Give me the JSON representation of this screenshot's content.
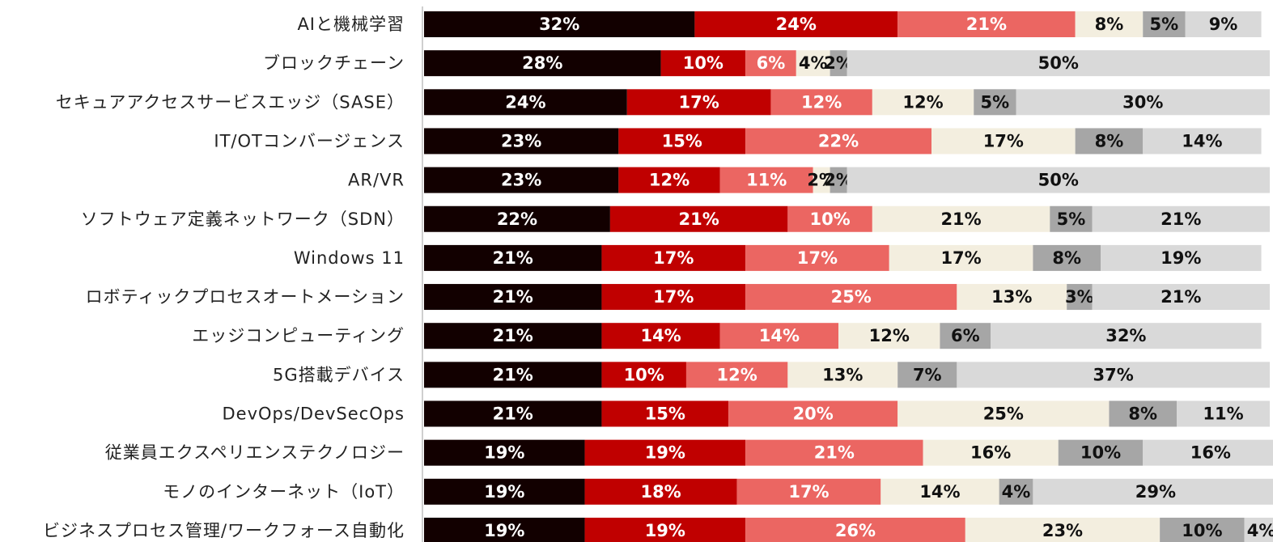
{
  "chart_data": {
    "type": "stacked_bar_horizontal",
    "categories": [
      "AIと機械学習",
      "ブロックチェーン",
      "セキュアアクセスサービスエッジ（SASE）",
      "IT/OTコンバージェンス",
      "AR/VR",
      "ソフトウェア定義ネットワーク（SDN）",
      "Windows 11",
      "ロボティックプロセスオートメーション",
      "エッジコンピューティング",
      "5G搭載デバイス",
      "DevOps/DevSecOps",
      "従業員エクスペリエンステクノロジー",
      "モノのインターネット（IoT）",
      "ビジネスプロセス管理/ワークフォース自動化"
    ],
    "xlim": [
      0,
      100
    ],
    "series": [
      {
        "color": "#120000",
        "values": [
          32,
          28,
          24,
          23,
          23,
          22,
          21,
          21,
          21,
          21,
          21,
          19,
          19,
          19
        ],
        "value_labels": [
          "32%",
          "28%",
          "24%",
          "23%",
          "23%",
          "22%",
          "21%",
          "21%",
          "21%",
          "21%",
          "21%",
          "19%",
          "19%",
          "19%"
        ]
      },
      {
        "color": "#c00000",
        "values": [
          24,
          10,
          17,
          15,
          12,
          21,
          17,
          17,
          14,
          10,
          15,
          19,
          18,
          19
        ],
        "value_labels": [
          "24%",
          "10%",
          "17%",
          "15%",
          "12%",
          "21%",
          "17%",
          "17%",
          "14%",
          "10%",
          "15%",
          "19%",
          "18%",
          "19%"
        ]
      },
      {
        "color": "#eb6662",
        "values": [
          21,
          6,
          12,
          22,
          11,
          10,
          17,
          25,
          14,
          12,
          20,
          21,
          17,
          26
        ],
        "value_labels": [
          "21%",
          "6%",
          "12%",
          "22%",
          "11%",
          "10%",
          "17%",
          "25%",
          "14%",
          "12%",
          "20%",
          "21%",
          "17%",
          "26%"
        ]
      },
      {
        "color": "#f3eedf",
        "values": [
          8,
          4,
          12,
          17,
          2,
          21,
          17,
          13,
          12,
          13,
          25,
          16,
          14,
          23
        ],
        "value_labels": [
          "8%",
          "4%",
          "12%",
          "17%",
          "2%",
          "21%",
          "17%",
          "13%",
          "12%",
          "13%",
          "25%",
          "16%",
          "14%",
          "23%"
        ]
      },
      {
        "color": "#a6a6a6",
        "values": [
          5,
          2,
          5,
          8,
          2,
          5,
          8,
          3,
          6,
          7,
          8,
          10,
          4,
          10
        ],
        "value_labels": [
          "5%",
          "2%",
          "5%",
          "8%",
          "2%",
          "5%",
          "8%",
          "3%",
          "6%",
          "7%",
          "8%",
          "10%",
          "4%",
          "10%"
        ]
      },
      {
        "color": "#d9d9d9",
        "values": [
          9,
          50,
          30,
          14,
          50,
          21,
          19,
          21,
          32,
          37,
          11,
          16,
          29,
          4
        ],
        "value_labels": [
          "9%",
          "50%",
          "30%",
          "14%",
          "50%",
          "21%",
          "19%",
          "21%",
          "32%",
          "37%",
          "11%",
          "16%",
          "29%",
          "4%"
        ]
      }
    ]
  }
}
